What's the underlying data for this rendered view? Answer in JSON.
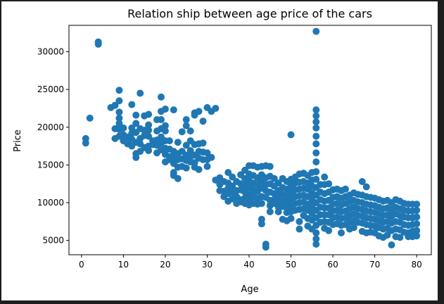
{
  "chart_data": {
    "type": "scatter",
    "title": "Relation ship between age price of the cars",
    "xlabel": "Age",
    "ylabel": "Price",
    "xlim": [
      -3,
      83.5
    ],
    "ylim": [
      3100,
      33500
    ],
    "xticks": [
      0,
      10,
      20,
      30,
      40,
      50,
      60,
      70,
      80
    ],
    "yticks": [
      5000,
      10000,
      15000,
      20000,
      25000,
      30000
    ],
    "grid": false,
    "marker_color": "#1f77b4",
    "points": [
      [
        1,
        18500
      ],
      [
        1,
        17900
      ],
      [
        2,
        21200
      ],
      [
        4,
        31000
      ],
      [
        4,
        31300
      ],
      [
        7,
        22600
      ],
      [
        8,
        22900
      ],
      [
        8,
        19800
      ],
      [
        8,
        18500
      ],
      [
        9,
        24900
      ],
      [
        9,
        23500
      ],
      [
        9,
        22000
      ],
      [
        9,
        21200
      ],
      [
        9,
        20500
      ],
      [
        9,
        19700
      ],
      [
        9,
        18800
      ],
      [
        10,
        19900
      ],
      [
        10,
        19000
      ],
      [
        10,
        18200
      ],
      [
        11,
        18700
      ],
      [
        11,
        17800
      ],
      [
        12,
        23000
      ],
      [
        12,
        19900
      ],
      [
        12,
        19200
      ],
      [
        12,
        18400
      ],
      [
        12,
        17500
      ],
      [
        13,
        21600
      ],
      [
        13,
        20500
      ],
      [
        13,
        19300
      ],
      [
        13,
        18000
      ],
      [
        13,
        16500
      ],
      [
        13,
        16000
      ],
      [
        14,
        24500
      ],
      [
        14,
        19800
      ],
      [
        14,
        18500
      ],
      [
        14,
        17800
      ],
      [
        14,
        16800
      ],
      [
        15,
        21500
      ],
      [
        15,
        19600
      ],
      [
        15,
        18900
      ],
      [
        15,
        17300
      ],
      [
        16,
        21700
      ],
      [
        16,
        20300
      ],
      [
        16,
        19600
      ],
      [
        16,
        18800
      ],
      [
        16,
        17500
      ],
      [
        16,
        16900
      ],
      [
        17,
        18200
      ],
      [
        17,
        17700
      ],
      [
        18,
        21000
      ],
      [
        18,
        19500
      ],
      [
        18,
        18300
      ],
      [
        18,
        17600
      ],
      [
        18,
        16600
      ],
      [
        19,
        24000
      ],
      [
        19,
        22100
      ],
      [
        19,
        21000
      ],
      [
        19,
        19800
      ],
      [
        19,
        18700
      ],
      [
        19,
        17900
      ],
      [
        19,
        17000
      ],
      [
        20,
        22400
      ],
      [
        20,
        20200
      ],
      [
        20,
        19500
      ],
      [
        20,
        18200
      ],
      [
        20,
        17200
      ],
      [
        20,
        16400
      ],
      [
        20,
        15400
      ],
      [
        21,
        18200
      ],
      [
        21,
        17100
      ],
      [
        21,
        16100
      ],
      [
        21,
        15700
      ],
      [
        22,
        22300
      ],
      [
        22,
        16800
      ],
      [
        22,
        16000
      ],
      [
        22,
        15200
      ],
      [
        22,
        14000
      ],
      [
        22,
        13600
      ],
      [
        23,
        18000
      ],
      [
        23,
        16500
      ],
      [
        23,
        15700
      ],
      [
        23,
        14700
      ],
      [
        23,
        13200
      ],
      [
        24,
        19400
      ],
      [
        24,
        16800
      ],
      [
        24,
        15800
      ],
      [
        24,
        14800
      ],
      [
        25,
        21000
      ],
      [
        25,
        20200
      ],
      [
        25,
        17600
      ],
      [
        25,
        16300
      ],
      [
        25,
        15600
      ],
      [
        25,
        14600
      ],
      [
        26,
        19500
      ],
      [
        26,
        18200
      ],
      [
        26,
        16900
      ],
      [
        26,
        16100
      ],
      [
        26,
        15400
      ],
      [
        27,
        21900
      ],
      [
        27,
        21600
      ],
      [
        27,
        17700
      ],
      [
        27,
        16300
      ],
      [
        27,
        15300
      ],
      [
        27,
        14700
      ],
      [
        28,
        22100
      ],
      [
        28,
        17800
      ],
      [
        28,
        16800
      ],
      [
        28,
        15900
      ],
      [
        28,
        14400
      ],
      [
        29,
        20800
      ],
      [
        29,
        17900
      ],
      [
        29,
        16700
      ],
      [
        29,
        15700
      ],
      [
        30,
        22600
      ],
      [
        30,
        16600
      ],
      [
        30,
        15700
      ],
      [
        30,
        14800
      ],
      [
        31,
        22100
      ],
      [
        31,
        16000
      ],
      [
        32,
        22500
      ],
      [
        32,
        13000
      ],
      [
        33,
        13300
      ],
      [
        33,
        12400
      ],
      [
        33,
        11600
      ],
      [
        34,
        12800
      ],
      [
        34,
        11500
      ],
      [
        34,
        10800
      ],
      [
        35,
        14000
      ],
      [
        35,
        12600
      ],
      [
        35,
        11900
      ],
      [
        35,
        11200
      ],
      [
        35,
        10200
      ],
      [
        36,
        13400
      ],
      [
        36,
        12200
      ],
      [
        36,
        11400
      ],
      [
        36,
        10500
      ],
      [
        37,
        12800
      ],
      [
        37,
        11600
      ],
      [
        37,
        10800
      ],
      [
        37,
        9900
      ],
      [
        38,
        13700
      ],
      [
        38,
        12500
      ],
      [
        38,
        11700
      ],
      [
        38,
        10400
      ],
      [
        38,
        10100
      ],
      [
        39,
        14300
      ],
      [
        39,
        13200
      ],
      [
        39,
        12300
      ],
      [
        39,
        11400
      ],
      [
        39,
        10600
      ],
      [
        39,
        9900
      ],
      [
        40,
        14900
      ],
      [
        40,
        13800
      ],
      [
        40,
        12900
      ],
      [
        40,
        12000
      ],
      [
        40,
        11100
      ],
      [
        40,
        10300
      ],
      [
        40,
        9700
      ],
      [
        41,
        14900
      ],
      [
        41,
        13600
      ],
      [
        41,
        12600
      ],
      [
        41,
        11700
      ],
      [
        41,
        10800
      ],
      [
        41,
        9900
      ],
      [
        42,
        14700
      ],
      [
        42,
        13300
      ],
      [
        42,
        12400
      ],
      [
        42,
        11500
      ],
      [
        42,
        10600
      ],
      [
        42,
        9800
      ],
      [
        43,
        14800
      ],
      [
        43,
        13700
      ],
      [
        43,
        12800
      ],
      [
        43,
        11900
      ],
      [
        43,
        10800
      ],
      [
        43,
        9900
      ],
      [
        43,
        7800
      ],
      [
        43,
        7200
      ],
      [
        44,
        14900
      ],
      [
        44,
        13300
      ],
      [
        44,
        12400
      ],
      [
        44,
        11600
      ],
      [
        44,
        10700
      ],
      [
        44,
        4500
      ],
      [
        44,
        4100
      ],
      [
        45,
        14800
      ],
      [
        45,
        13500
      ],
      [
        45,
        12500
      ],
      [
        45,
        11400
      ],
      [
        45,
        10300
      ],
      [
        45,
        9600
      ],
      [
        45,
        8800
      ],
      [
        46,
        13200
      ],
      [
        46,
        12200
      ],
      [
        46,
        11200
      ],
      [
        46,
        10400
      ],
      [
        46,
        9900
      ],
      [
        47,
        12600
      ],
      [
        47,
        11600
      ],
      [
        47,
        10900
      ],
      [
        47,
        10100
      ],
      [
        47,
        9400
      ],
      [
        47,
        8800
      ],
      [
        48,
        13200
      ],
      [
        48,
        12000
      ],
      [
        48,
        11100
      ],
      [
        48,
        10200
      ],
      [
        48,
        9500
      ],
      [
        48,
        7800
      ],
      [
        49,
        12800
      ],
      [
        49,
        11800
      ],
      [
        49,
        10900
      ],
      [
        49,
        10100
      ],
      [
        49,
        9300
      ],
      [
        49,
        8700
      ],
      [
        49,
        7600
      ],
      [
        50,
        19000
      ],
      [
        50,
        13100
      ],
      [
        50,
        12300
      ],
      [
        50,
        11400
      ],
      [
        50,
        10500
      ],
      [
        50,
        9600
      ],
      [
        50,
        8800
      ],
      [
        50,
        7900
      ],
      [
        51,
        13400
      ],
      [
        51,
        12600
      ],
      [
        51,
        11700
      ],
      [
        51,
        10800
      ],
      [
        51,
        9900
      ],
      [
        51,
        9000
      ],
      [
        52,
        13800
      ],
      [
        52,
        12700
      ],
      [
        52,
        11800
      ],
      [
        52,
        10900
      ],
      [
        52,
        10000
      ],
      [
        52,
        9100
      ],
      [
        52,
        7500
      ],
      [
        52,
        6500
      ],
      [
        53,
        13900
      ],
      [
        53,
        12800
      ],
      [
        53,
        11900
      ],
      [
        53,
        11000
      ],
      [
        53,
        10100
      ],
      [
        53,
        9200
      ],
      [
        53,
        8300
      ],
      [
        54,
        13600
      ],
      [
        54,
        12600
      ],
      [
        54,
        11800
      ],
      [
        54,
        10800
      ],
      [
        54,
        9800
      ],
      [
        54,
        9000
      ],
      [
        54,
        7900
      ],
      [
        54,
        6900
      ],
      [
        55,
        14000
      ],
      [
        55,
        13000
      ],
      [
        55,
        12200
      ],
      [
        55,
        11300
      ],
      [
        55,
        10400
      ],
      [
        55,
        9500
      ],
      [
        55,
        8600
      ],
      [
        55,
        7700
      ],
      [
        55,
        6500
      ],
      [
        56,
        32700
      ],
      [
        56,
        22300
      ],
      [
        56,
        21500
      ],
      [
        56,
        20700
      ],
      [
        56,
        19900
      ],
      [
        56,
        18800
      ],
      [
        56,
        17800
      ],
      [
        56,
        16600
      ],
      [
        56,
        15400
      ],
      [
        56,
        14100
      ],
      [
        56,
        13100
      ],
      [
        56,
        12000
      ],
      [
        56,
        11000
      ],
      [
        56,
        10000
      ],
      [
        56,
        9000
      ],
      [
        56,
        8000
      ],
      [
        56,
        7000
      ],
      [
        56,
        6000
      ],
      [
        56,
        5200
      ],
      [
        56,
        4500
      ],
      [
        57,
        12400
      ],
      [
        57,
        11400
      ],
      [
        57,
        10400
      ],
      [
        57,
        9400
      ],
      [
        57,
        8400
      ],
      [
        57,
        7400
      ],
      [
        58,
        13400
      ],
      [
        58,
        12400
      ],
      [
        58,
        11200
      ],
      [
        58,
        10200
      ],
      [
        58,
        9300
      ],
      [
        58,
        8400
      ],
      [
        58,
        7500
      ],
      [
        58,
        6600
      ],
      [
        59,
        12500
      ],
      [
        59,
        11400
      ],
      [
        59,
        10300
      ],
      [
        59,
        9300
      ],
      [
        59,
        8400
      ],
      [
        59,
        7400
      ],
      [
        59,
        6300
      ],
      [
        60,
        11700
      ],
      [
        60,
        10700
      ],
      [
        60,
        9800
      ],
      [
        60,
        8900
      ],
      [
        60,
        8000
      ],
      [
        60,
        7100
      ],
      [
        61,
        11800
      ],
      [
        61,
        10800
      ],
      [
        61,
        9900
      ],
      [
        61,
        9000
      ],
      [
        61,
        8100
      ],
      [
        61,
        7200
      ],
      [
        62,
        11600
      ],
      [
        62,
        10600
      ],
      [
        62,
        9700
      ],
      [
        62,
        8800
      ],
      [
        62,
        7900
      ],
      [
        62,
        7000
      ],
      [
        62,
        6000
      ],
      [
        63,
        11800
      ],
      [
        63,
        10800
      ],
      [
        63,
        9900
      ],
      [
        63,
        8900
      ],
      [
        63,
        8000
      ],
      [
        63,
        7100
      ],
      [
        64,
        11000
      ],
      [
        64,
        10100
      ],
      [
        64,
        9200
      ],
      [
        64,
        8300
      ],
      [
        64,
        7400
      ],
      [
        64,
        6500
      ],
      [
        65,
        11300
      ],
      [
        65,
        10300
      ],
      [
        65,
        9400
      ],
      [
        65,
        8500
      ],
      [
        65,
        7600
      ],
      [
        65,
        6700
      ],
      [
        66,
        11100
      ],
      [
        66,
        10100
      ],
      [
        66,
        9200
      ],
      [
        66,
        8300
      ],
      [
        66,
        7400
      ],
      [
        67,
        12800
      ],
      [
        67,
        11000
      ],
      [
        67,
        10000
      ],
      [
        67,
        9100
      ],
      [
        67,
        8200
      ],
      [
        67,
        7300
      ],
      [
        67,
        6200
      ],
      [
        68,
        12100
      ],
      [
        68,
        10800
      ],
      [
        68,
        9800
      ],
      [
        68,
        8900
      ],
      [
        68,
        8000
      ],
      [
        68,
        7100
      ],
      [
        68,
        6000
      ],
      [
        69,
        10700
      ],
      [
        69,
        9700
      ],
      [
        69,
        8800
      ],
      [
        69,
        7900
      ],
      [
        69,
        7000
      ],
      [
        69,
        6100
      ],
      [
        70,
        10600
      ],
      [
        70,
        9600
      ],
      [
        70,
        8700
      ],
      [
        70,
        7800
      ],
      [
        70,
        6900
      ],
      [
        70,
        6000
      ],
      [
        71,
        10400
      ],
      [
        71,
        9400
      ],
      [
        71,
        8500
      ],
      [
        71,
        7600
      ],
      [
        71,
        6700
      ],
      [
        71,
        5600
      ],
      [
        72,
        10200
      ],
      [
        72,
        9200
      ],
      [
        72,
        8300
      ],
      [
        72,
        7400
      ],
      [
        72,
        6500
      ],
      [
        72,
        5400
      ],
      [
        73,
        10300
      ],
      [
        73,
        9300
      ],
      [
        73,
        8400
      ],
      [
        73,
        7500
      ],
      [
        73,
        6600
      ],
      [
        73,
        5700
      ],
      [
        74,
        10000
      ],
      [
        74,
        9100
      ],
      [
        74,
        8200
      ],
      [
        74,
        7300
      ],
      [
        74,
        6300
      ],
      [
        74,
        4400
      ],
      [
        75,
        10400
      ],
      [
        75,
        9400
      ],
      [
        75,
        8500
      ],
      [
        75,
        7500
      ],
      [
        75,
        6500
      ],
      [
        75,
        5500
      ],
      [
        76,
        10200
      ],
      [
        76,
        9200
      ],
      [
        76,
        8300
      ],
      [
        76,
        7400
      ],
      [
        76,
        6400
      ],
      [
        76,
        5400
      ],
      [
        77,
        9900
      ],
      [
        77,
        9000
      ],
      [
        77,
        8100
      ],
      [
        77,
        7100
      ],
      [
        77,
        6100
      ],
      [
        78,
        9800
      ],
      [
        78,
        8900
      ],
      [
        78,
        8000
      ],
      [
        78,
        7000
      ],
      [
        78,
        6000
      ],
      [
        78,
        5500
      ],
      [
        79,
        9800
      ],
      [
        79,
        8900
      ],
      [
        79,
        8000
      ],
      [
        79,
        7100
      ],
      [
        79,
        6200
      ],
      [
        79,
        5500
      ],
      [
        80,
        9800
      ],
      [
        80,
        9000
      ],
      [
        80,
        8100
      ],
      [
        80,
        7200
      ],
      [
        80,
        6300
      ],
      [
        80,
        5600
      ]
    ]
  }
}
